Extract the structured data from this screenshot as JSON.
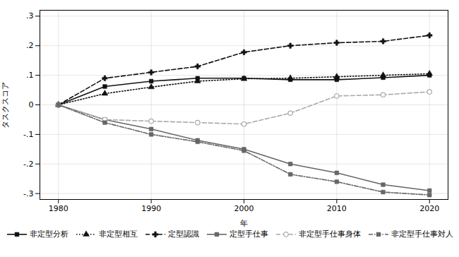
{
  "chart_data": {
    "type": "line",
    "x": [
      1980,
      1985,
      1990,
      1995,
      2000,
      2005,
      2010,
      2015,
      2020
    ],
    "series": [
      {
        "name": "非定型分析",
        "color": "#111111",
        "line_style": "solid",
        "marker": "square",
        "values": [
          0.0,
          0.062,
          0.08,
          0.09,
          0.09,
          0.085,
          0.085,
          0.092,
          0.1
        ]
      },
      {
        "name": "非定型相互",
        "color": "#111111",
        "line_style": "dotted",
        "marker": "triangle",
        "values": [
          0.0,
          0.038,
          0.06,
          0.08,
          0.088,
          0.09,
          0.095,
          0.1,
          0.105
        ]
      },
      {
        "name": "定型認識",
        "color": "#111111",
        "line_style": "dashed",
        "marker": "plus",
        "values": [
          0.0,
          0.09,
          0.11,
          0.13,
          0.178,
          0.2,
          0.21,
          0.215,
          0.235
        ]
      },
      {
        "name": "定型手仕事",
        "color": "#666666",
        "line_style": "solid",
        "marker": "square",
        "values": [
          0.0,
          -0.05,
          -0.082,
          -0.12,
          -0.15,
          -0.2,
          -0.23,
          -0.27,
          -0.29
        ]
      },
      {
        "name": "非定型手仕事身体",
        "color": "#aaaaaa",
        "line_style": "dashed",
        "marker": "circle",
        "values": [
          0.0,
          -0.05,
          -0.055,
          -0.06,
          -0.065,
          -0.028,
          0.03,
          0.034,
          0.044
        ]
      },
      {
        "name": "非定型手仕事対人",
        "color": "#666666",
        "line_style": "dashdot",
        "marker": "square",
        "values": [
          0.0,
          -0.06,
          -0.1,
          -0.125,
          -0.155,
          -0.235,
          -0.26,
          -0.295,
          -0.305
        ]
      }
    ],
    "xlim": [
      1978,
      2022
    ],
    "ylim": [
      -0.32,
      0.32
    ],
    "xticks": [
      1980,
      1990,
      2000,
      2010,
      2020
    ],
    "yticks": [
      {
        "value": -0.3,
        "label": "-.3"
      },
      {
        "value": -0.2,
        "label": "-.2"
      },
      {
        "value": -0.1,
        "label": "-.1"
      },
      0.0,
      {
        "value": 0.1,
        "label": ".1"
      },
      {
        "value": 0.2,
        "label": ".2"
      },
      {
        "value": 0.3,
        "label": ".3"
      }
    ],
    "xlabel": "年",
    "ylabel": "タスクスコア",
    "grid": true,
    "legend": "bottom"
  }
}
